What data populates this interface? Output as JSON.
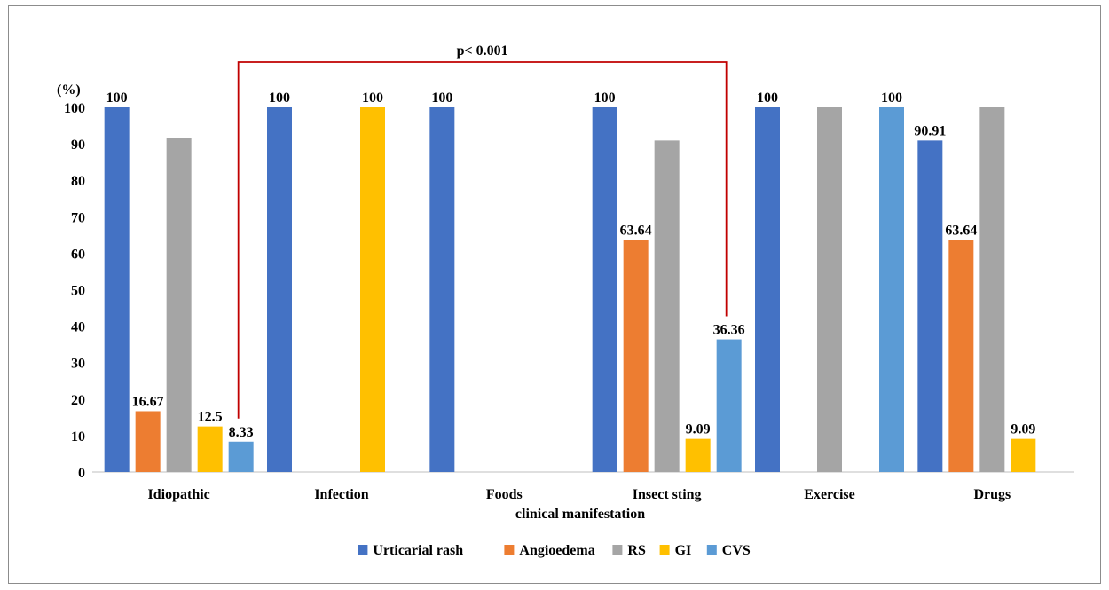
{
  "chart_data": {
    "type": "bar",
    "xlabel": "clinical manifestation",
    "ylabel": "(%)",
    "ylim": [
      0,
      100
    ],
    "yticks": [
      "0",
      "10",
      "20",
      "30",
      "40",
      "50",
      "60",
      "70",
      "80",
      "90",
      "100"
    ],
    "categories": [
      "Idiopathic",
      "Infection",
      "Foods",
      "Insect sting",
      "Exercise",
      "Drugs"
    ],
    "series": [
      {
        "name": "Urticarial rash",
        "color": "#4472C4",
        "values": [
          100,
          100,
          100,
          100,
          100,
          90.91
        ],
        "labels": [
          "100",
          "100",
          "100",
          "100",
          "100",
          "90.91"
        ]
      },
      {
        "name": "Angioedema",
        "color": "#ED7D31",
        "values": [
          16.67,
          0,
          0,
          63.64,
          0,
          63.64
        ],
        "labels": [
          "16.67",
          "",
          "",
          "63.64",
          "",
          "63.64"
        ]
      },
      {
        "name": "RS",
        "color": "#A5A5A5",
        "values": [
          91.67,
          0,
          0,
          90.91,
          100,
          100
        ],
        "labels": [
          "",
          "",
          "",
          "",
          "",
          ""
        ]
      },
      {
        "name": "GI",
        "color": "#FFC000",
        "values": [
          12.5,
          100,
          0,
          9.09,
          0,
          9.09
        ],
        "labels": [
          "12.5",
          "100",
          "",
          "9.09",
          "",
          "9.09"
        ]
      },
      {
        "name": "CVS",
        "color": "#5B9BD5",
        "values": [
          8.33,
          0,
          0,
          36.36,
          100,
          0
        ],
        "labels": [
          "8.33",
          "",
          "",
          "36.36",
          "100",
          ""
        ]
      }
    ],
    "annotation": {
      "text": "p< 0.001",
      "from_category": "Idiopathic",
      "from_series": "CVS",
      "to_category": "Insect sting",
      "to_series": "CVS",
      "color": "#C00000"
    },
    "legend_position": "bottom",
    "grid": false
  }
}
